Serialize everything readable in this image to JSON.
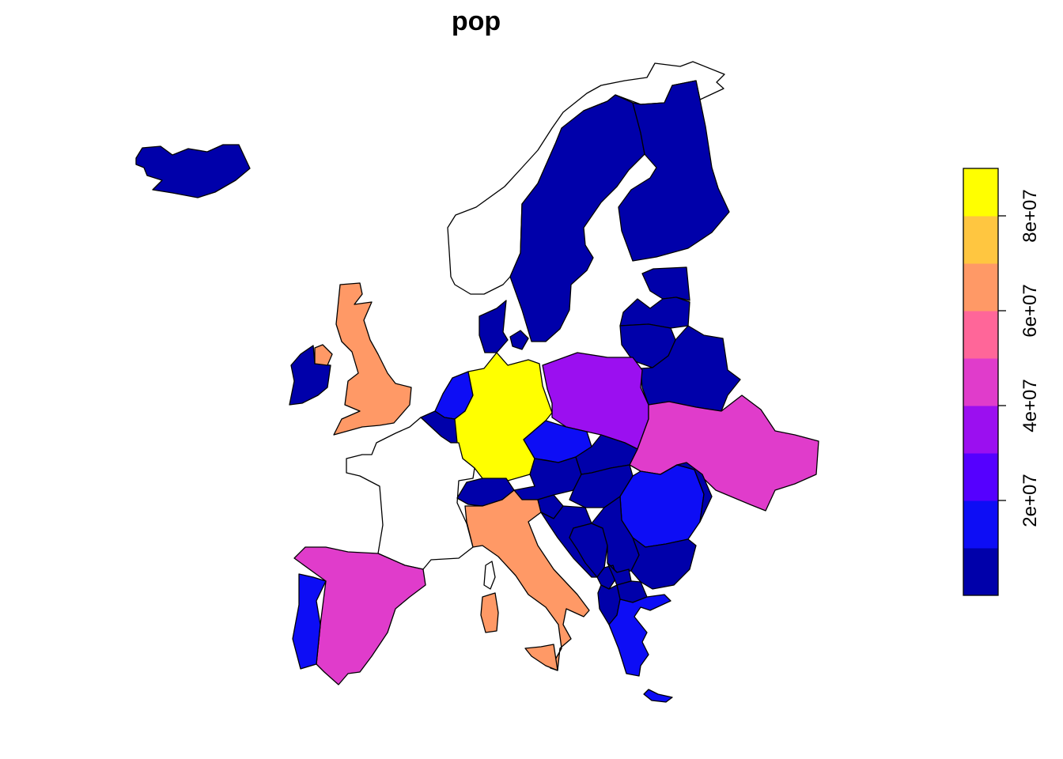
{
  "title": "pop",
  "legend": {
    "ticks": [
      "2e+07",
      "4e+07",
      "6e+07",
      "8e+07"
    ],
    "tick_values": [
      20000000,
      40000000,
      60000000,
      80000000
    ],
    "range": [
      0,
      90000000
    ],
    "palette": [
      "#0000AA",
      "#0D0DF5",
      "#5500FF",
      "#9B0FF0",
      "#E03CCB",
      "#FF6699",
      "#FF9966",
      "#FFC640",
      "#FFFF00"
    ]
  },
  "countries": [
    {
      "name": "Iceland",
      "fill": "#0000AA"
    },
    {
      "name": "Norway",
      "fill": "#FFFFFF"
    },
    {
      "name": "Sweden",
      "fill": "#0000AA"
    },
    {
      "name": "Finland",
      "fill": "#0000AA"
    },
    {
      "name": "Ireland",
      "fill": "#0000AA"
    },
    {
      "name": "United Kingdom",
      "fill": "#FF9966"
    },
    {
      "name": "Denmark",
      "fill": "#0000AA"
    },
    {
      "name": "Estonia",
      "fill": "#0000AA"
    },
    {
      "name": "Latvia",
      "fill": "#0000AA"
    },
    {
      "name": "Lithuania",
      "fill": "#0000AA"
    },
    {
      "name": "Belarus",
      "fill": "#0000AA"
    },
    {
      "name": "Netherlands",
      "fill": "#0D0DF5"
    },
    {
      "name": "Belgium",
      "fill": "#0000AA"
    },
    {
      "name": "Germany",
      "fill": "#FFFF00"
    },
    {
      "name": "Poland",
      "fill": "#9B0FF0"
    },
    {
      "name": "Ukraine",
      "fill": "#E03CCB"
    },
    {
      "name": "France",
      "fill": "#FFFFFF"
    },
    {
      "name": "Switzerland",
      "fill": "#0000AA"
    },
    {
      "name": "Czechia",
      "fill": "#0D0DF5"
    },
    {
      "name": "Austria",
      "fill": "#0000AA"
    },
    {
      "name": "Slovakia",
      "fill": "#0000AA"
    },
    {
      "name": "Hungary",
      "fill": "#0000AA"
    },
    {
      "name": "Romania",
      "fill": "#0D0DF5"
    },
    {
      "name": "Moldova",
      "fill": "#0000AA"
    },
    {
      "name": "Italy",
      "fill": "#FF9966"
    },
    {
      "name": "Slovenia",
      "fill": "#0000AA"
    },
    {
      "name": "Croatia",
      "fill": "#0000AA"
    },
    {
      "name": "Bosnia and Herzegovina",
      "fill": "#0000AA"
    },
    {
      "name": "Serbia",
      "fill": "#0000AA"
    },
    {
      "name": "Bulgaria",
      "fill": "#0000AA"
    },
    {
      "name": "Montenegro",
      "fill": "#0000AA"
    },
    {
      "name": "Kosovo",
      "fill": "#0000AA"
    },
    {
      "name": "North Macedonia",
      "fill": "#0000AA"
    },
    {
      "name": "Albania",
      "fill": "#0000AA"
    },
    {
      "name": "Greece",
      "fill": "#0D0DF5"
    },
    {
      "name": "Crete",
      "fill": "#0D0DF5"
    },
    {
      "name": "Spain",
      "fill": "#E03CCB"
    },
    {
      "name": "Portugal",
      "fill": "#0D0DF5"
    },
    {
      "name": "Corsica",
      "fill": "#FFFFFF"
    },
    {
      "name": "Sardinia",
      "fill": "#FF9966"
    },
    {
      "name": "Sicily",
      "fill": "#FF9966"
    }
  ]
}
